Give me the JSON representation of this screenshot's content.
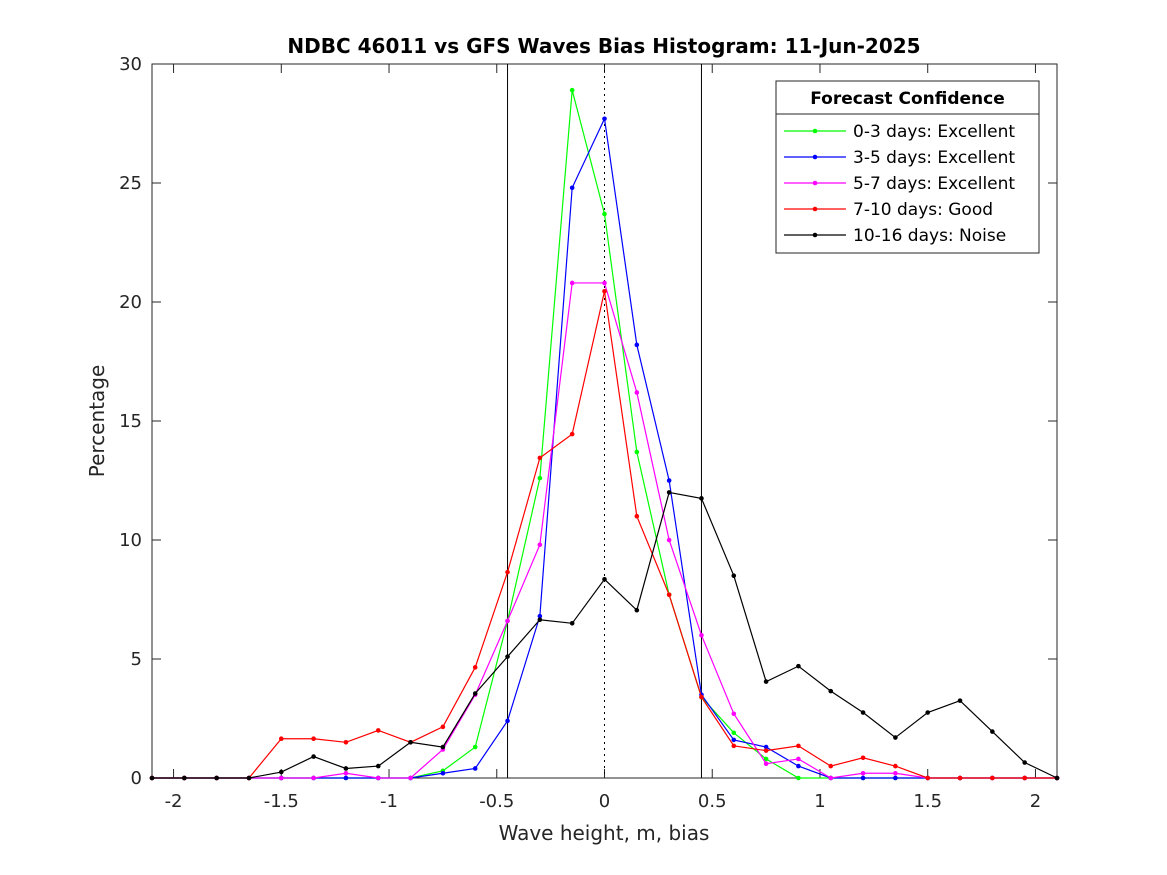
{
  "chart_data": {
    "type": "line",
    "title": "NDBC 46011 vs GFS Waves Bias Histogram: 11-Jun-2025",
    "xlabel": "Wave height, m, bias",
    "ylabel": "Percentage",
    "xlim": [
      -2.1,
      2.1
    ],
    "ylim": [
      0,
      30
    ],
    "xticks": [
      -2,
      -1.5,
      -1,
      -0.5,
      0,
      0.5,
      1,
      1.5,
      2
    ],
    "xtick_labels": [
      "-2",
      "-1.5",
      "-1",
      "-0.5",
      "0",
      "0.5",
      "1",
      "1.5",
      "2"
    ],
    "yticks": [
      0,
      5,
      10,
      15,
      20,
      25,
      30
    ],
    "ytick_labels": [
      "0",
      "5",
      "10",
      "15",
      "20",
      "25",
      "30"
    ],
    "grid": false,
    "vertical_lines": [
      {
        "x": -0.45,
        "style": "solid",
        "color": "#000000"
      },
      {
        "x": 0,
        "style": "dotted",
        "color": "#000000"
      },
      {
        "x": 0.45,
        "style": "solid",
        "color": "#000000"
      }
    ],
    "legend": {
      "title": "Forecast Confidence",
      "position": "top-right"
    },
    "x": [
      -2.1,
      -1.95,
      -1.8,
      -1.65,
      -1.5,
      -1.35,
      -1.2,
      -1.05,
      -0.9,
      -0.75,
      -0.6,
      -0.45,
      -0.3,
      -0.15,
      0,
      0.15,
      0.3,
      0.45,
      0.6,
      0.75,
      0.9,
      1.05,
      1.2,
      1.35,
      1.5,
      1.65,
      1.8,
      1.95,
      2.1
    ],
    "series": [
      {
        "name": "0-3 days: Excellent",
        "color": "#00ff00",
        "values": [
          0,
          0,
          0,
          0,
          0,
          0,
          0,
          0,
          0,
          0.3,
          1.3,
          6.6,
          12.6,
          28.9,
          23.7,
          13.7,
          7.7,
          3.4,
          1.9,
          0.8,
          0,
          0,
          0,
          0,
          0,
          0,
          0,
          0,
          0
        ]
      },
      {
        "name": "3-5 days: Excellent",
        "color": "#0000ff",
        "values": [
          0,
          0,
          0,
          0,
          0,
          0,
          0,
          0,
          0,
          0.2,
          0.4,
          2.4,
          6.8,
          24.8,
          27.7,
          18.2,
          12.5,
          3.5,
          1.6,
          1.3,
          0.5,
          0,
          0,
          0,
          0,
          0,
          0,
          0,
          0
        ]
      },
      {
        "name": "5-7 days: Excellent",
        "color": "#ff00ff",
        "values": [
          0,
          0,
          0,
          0,
          0,
          0,
          0.2,
          0,
          0,
          1.2,
          3.5,
          6.6,
          9.8,
          20.8,
          20.8,
          16.2,
          10.0,
          6.0,
          2.7,
          0.6,
          0.8,
          0,
          0.2,
          0.2,
          0,
          0,
          0,
          0,
          0
        ]
      },
      {
        "name": "7-10 days: Good",
        "color": "#ff0000",
        "values": [
          0,
          0,
          0,
          0,
          1.65,
          1.65,
          1.5,
          2.0,
          1.5,
          2.15,
          4.65,
          8.65,
          13.45,
          14.45,
          20.45,
          11.0,
          7.7,
          3.4,
          1.35,
          1.15,
          1.35,
          0.5,
          0.85,
          0.5,
          0,
          0,
          0,
          0,
          0
        ]
      },
      {
        "name": "10-16 days: Noise",
        "color": "#000000",
        "values": [
          0,
          0,
          0,
          0,
          0.25,
          0.9,
          0.4,
          0.5,
          1.5,
          1.3,
          3.55,
          5.1,
          6.65,
          6.5,
          8.35,
          7.05,
          12.0,
          11.75,
          8.5,
          4.05,
          4.7,
          3.65,
          2.75,
          1.7,
          2.75,
          3.25,
          1.95,
          0.65,
          0
        ]
      }
    ]
  }
}
